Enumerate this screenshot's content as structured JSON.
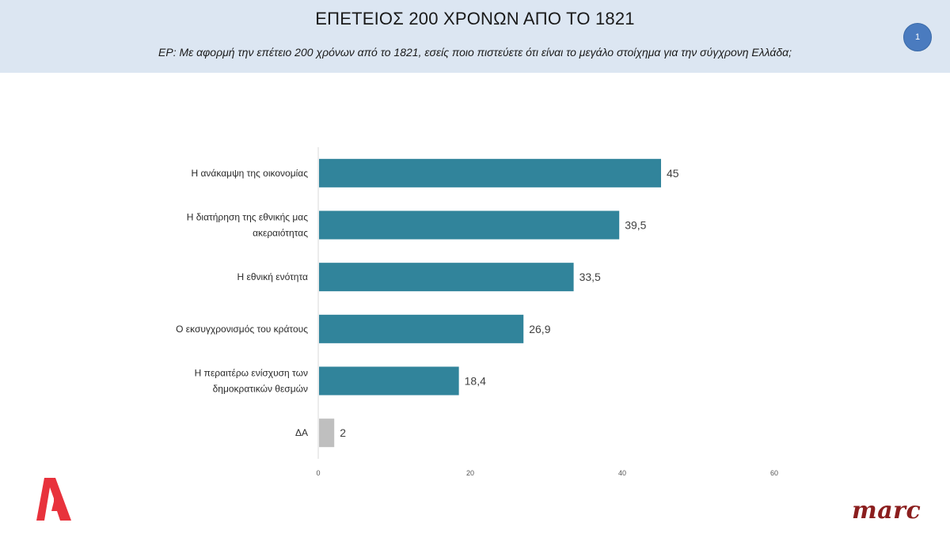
{
  "header": {
    "title": "ΕΠΕΤΕΙΟΣ 200 ΧΡΟΝΩΝ ΑΠΟ ΤΟ 1821",
    "subtitle": "ΕΡ:  Με αφορμή την επέτειο 200 χρόνων από το 1821, εσείς ποιο πιστεύετε ότι είναι το μεγάλο στοίχημα για την σύγχρονη Ελλάδα;",
    "page_number": "1"
  },
  "logos": {
    "left_logo_icon": "alpha-tv-logo",
    "left_logo_color": "#e8323c",
    "right_logo_text": "marc",
    "right_logo_color": "#8b1e1e"
  },
  "chart_data": {
    "type": "bar",
    "orientation": "horizontal",
    "categories": [
      [
        "Η ανάκαμψη της οικονομίας"
      ],
      [
        "Η διατήρηση της εθνικής μας",
        "ακεραιότητας"
      ],
      [
        "Η εθνική ενότητα"
      ],
      [
        "Ο εκσυγχρονισμός του κράτους"
      ],
      [
        "Η περαιτέρω ενίσχυση των",
        "δημοκρατικών θεσμών"
      ],
      [
        "ΔΑ"
      ]
    ],
    "values": [
      45,
      39.5,
      33.5,
      26.9,
      18.4,
      2
    ],
    "value_labels": [
      "45",
      "39,5",
      "33,5",
      "26,9",
      "18,4",
      "2"
    ],
    "bar_colors": [
      "#31849b",
      "#31849b",
      "#31849b",
      "#31849b",
      "#31849b",
      "#bfbfbf"
    ],
    "xlim": [
      0,
      60
    ],
    "xticks": [
      0,
      20,
      40,
      60
    ],
    "xtick_labels": [
      "0",
      "20",
      "40",
      "60"
    ],
    "grid": false,
    "legend": "none"
  }
}
